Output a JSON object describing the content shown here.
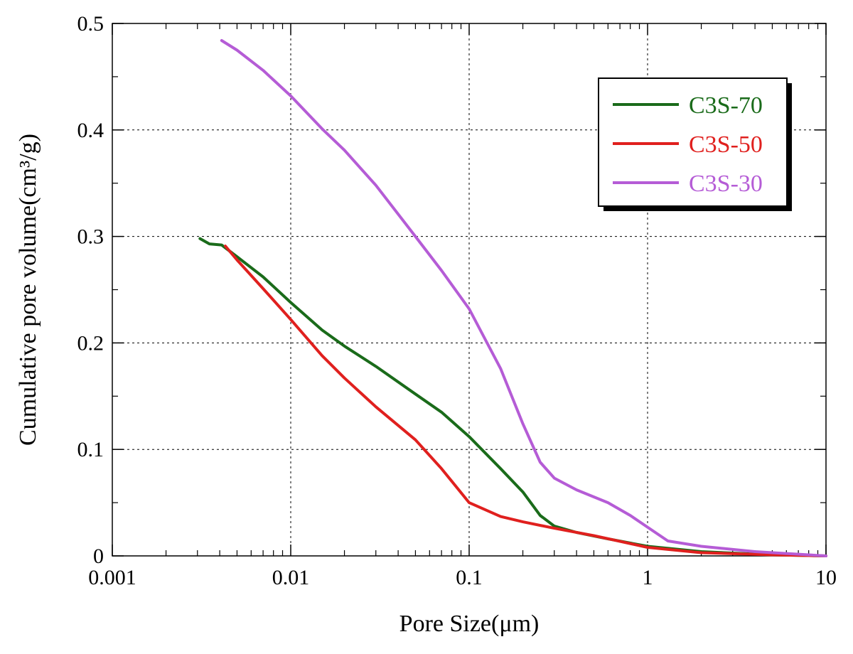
{
  "chart_data": {
    "type": "line",
    "xlabel": "Pore Size(μm)",
    "ylabel": "Cumulative pore volume(cm³/g)",
    "x_scale": "log",
    "xlim": [
      0.001,
      10
    ],
    "ylim": [
      0,
      0.5
    ],
    "x_ticks": [
      {
        "value": 0.001,
        "label": "0.001"
      },
      {
        "value": 0.01,
        "label": "0.01"
      },
      {
        "value": 0.1,
        "label": "0.1"
      },
      {
        "value": 1,
        "label": "1"
      },
      {
        "value": 10,
        "label": "10"
      }
    ],
    "y_ticks": [
      {
        "value": 0,
        "label": "0"
      },
      {
        "value": 0.1,
        "label": "0.1"
      },
      {
        "value": 0.2,
        "label": "0.2"
      },
      {
        "value": 0.3,
        "label": "0.3"
      },
      {
        "value": 0.4,
        "label": "0.4"
      },
      {
        "value": 0.5,
        "label": "0.5"
      }
    ],
    "grid": true,
    "legend_position": "top-right",
    "series": [
      {
        "name": "C3S-70",
        "color": "#1a6b1a",
        "points": [
          [
            0.0031,
            0.298
          ],
          [
            0.0035,
            0.293
          ],
          [
            0.0041,
            0.292
          ],
          [
            0.005,
            0.281
          ],
          [
            0.007,
            0.262
          ],
          [
            0.01,
            0.238
          ],
          [
            0.015,
            0.212
          ],
          [
            0.02,
            0.197
          ],
          [
            0.03,
            0.178
          ],
          [
            0.05,
            0.152
          ],
          [
            0.07,
            0.135
          ],
          [
            0.1,
            0.112
          ],
          [
            0.15,
            0.082
          ],
          [
            0.2,
            0.06
          ],
          [
            0.25,
            0.038
          ],
          [
            0.3,
            0.028
          ],
          [
            0.4,
            0.022
          ],
          [
            0.6,
            0.016
          ],
          [
            1.0,
            0.009
          ],
          [
            2.0,
            0.004
          ],
          [
            5.0,
            0.001
          ],
          [
            10.0,
            0.0
          ]
        ]
      },
      {
        "name": "C3S-50",
        "color": "#e0201e",
        "points": [
          [
            0.0043,
            0.291
          ],
          [
            0.005,
            0.278
          ],
          [
            0.007,
            0.251
          ],
          [
            0.01,
            0.222
          ],
          [
            0.015,
            0.188
          ],
          [
            0.02,
            0.167
          ],
          [
            0.03,
            0.14
          ],
          [
            0.05,
            0.109
          ],
          [
            0.07,
            0.082
          ],
          [
            0.1,
            0.05
          ],
          [
            0.15,
            0.037
          ],
          [
            0.2,
            0.032
          ],
          [
            0.3,
            0.026
          ],
          [
            0.5,
            0.019
          ],
          [
            1.0,
            0.008
          ],
          [
            2.0,
            0.003
          ],
          [
            5.0,
            0.001
          ],
          [
            10.0,
            0.0
          ]
        ]
      },
      {
        "name": "C3S-30",
        "color": "#b55cd6",
        "points": [
          [
            0.0041,
            0.484
          ],
          [
            0.005,
            0.475
          ],
          [
            0.007,
            0.456
          ],
          [
            0.01,
            0.432
          ],
          [
            0.015,
            0.401
          ],
          [
            0.02,
            0.381
          ],
          [
            0.03,
            0.348
          ],
          [
            0.05,
            0.3
          ],
          [
            0.07,
            0.268
          ],
          [
            0.1,
            0.232
          ],
          [
            0.15,
            0.176
          ],
          [
            0.2,
            0.124
          ],
          [
            0.25,
            0.088
          ],
          [
            0.3,
            0.073
          ],
          [
            0.4,
            0.062
          ],
          [
            0.6,
            0.05
          ],
          [
            0.8,
            0.038
          ],
          [
            1.0,
            0.027
          ],
          [
            1.3,
            0.014
          ],
          [
            2.0,
            0.009
          ],
          [
            4.0,
            0.004
          ],
          [
            10.0,
            0.0
          ]
        ]
      }
    ]
  }
}
